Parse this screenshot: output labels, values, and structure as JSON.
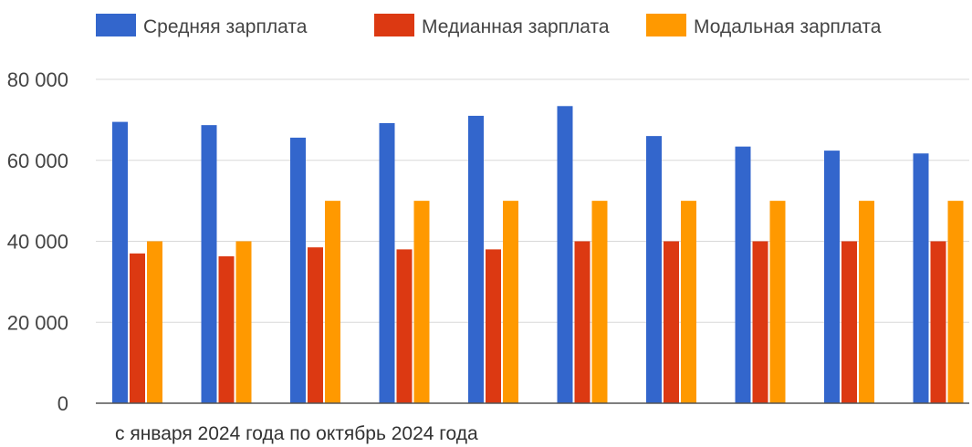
{
  "chart_data": {
    "type": "bar",
    "title": "",
    "xlabel": "с января 2024 года по октябрь 2024 года",
    "ylabel": "",
    "ylim": [
      0,
      80000
    ],
    "yticks": [
      0,
      20000,
      40000,
      60000,
      80000
    ],
    "ytick_labels": [
      "0",
      "20 000",
      "40 000",
      "60 000",
      "80 000"
    ],
    "categories": [
      "",
      "",
      "",
      "",
      "",
      "",
      "",
      "",
      "",
      ""
    ],
    "legend_position": "top",
    "grid": true,
    "series": [
      {
        "name": "Средняя зарплата",
        "color": "#3366cc",
        "values": [
          69500,
          68700,
          65600,
          69200,
          71000,
          73400,
          66000,
          63400,
          62400,
          61700
        ]
      },
      {
        "name": "Медианная зарплата",
        "color": "#dc3912",
        "values": [
          37000,
          36300,
          38500,
          38000,
          38000,
          40000,
          40000,
          40000,
          40000,
          40000
        ]
      },
      {
        "name": "Модальная зарплата",
        "color": "#ff9900",
        "values": [
          40000,
          40000,
          50000,
          50000,
          50000,
          50000,
          50000,
          50000,
          50000,
          50000
        ]
      }
    ]
  }
}
